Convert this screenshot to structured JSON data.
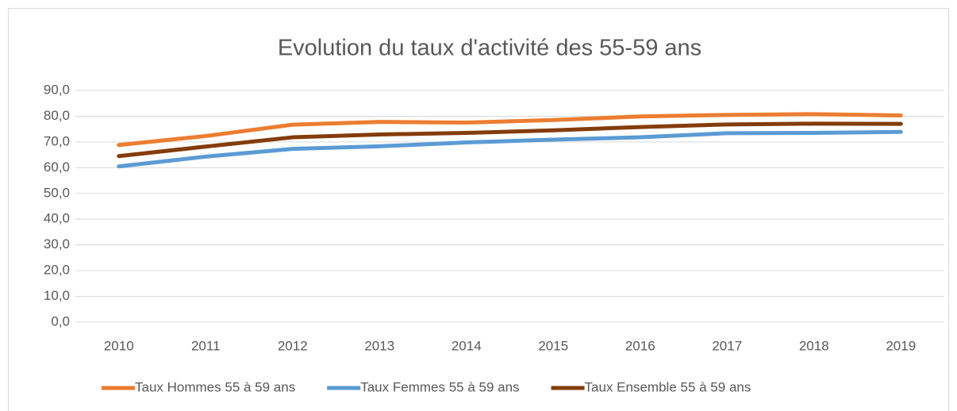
{
  "chart_data": {
    "type": "line",
    "title": "Evolution du taux d'activité des 55-59 ans",
    "categories": [
      "2010",
      "2011",
      "2012",
      "2013",
      "2014",
      "2015",
      "2016",
      "2017",
      "2018",
      "2019"
    ],
    "series": [
      {
        "name": "Taux Hommes 55 à 59 ans",
        "color": "#ed7d31",
        "values": [
          68.8,
          72.3,
          76.7,
          77.8,
          77.5,
          78.5,
          79.9,
          80.5,
          80.8,
          80.3
        ]
      },
      {
        "name": "Taux Femmes 55 à 59 ans",
        "color": "#5b9bd5",
        "values": [
          60.5,
          64.3,
          67.3,
          68.3,
          69.8,
          70.9,
          71.8,
          73.4,
          73.5,
          73.9
        ]
      },
      {
        "name": "Taux Ensemble 55 à 59 ans",
        "color": "#843c0c",
        "values": [
          64.5,
          68.2,
          71.8,
          72.9,
          73.5,
          74.5,
          75.8,
          76.8,
          77.1,
          77.0
        ]
      }
    ],
    "ylim": [
      0,
      90
    ],
    "yticks": [
      {
        "value": 0,
        "label": "0,0"
      },
      {
        "value": 10,
        "label": "10,0"
      },
      {
        "value": 20,
        "label": "20,0"
      },
      {
        "value": 30,
        "label": "30,0"
      },
      {
        "value": 40,
        "label": "40,0"
      },
      {
        "value": 50,
        "label": "50,0"
      },
      {
        "value": 60,
        "label": "60,0"
      },
      {
        "value": 70,
        "label": "70,0"
      },
      {
        "value": 80,
        "label": "80,0"
      },
      {
        "value": 90,
        "label": "90,0"
      }
    ],
    "grid": true,
    "legend": "bottom"
  }
}
